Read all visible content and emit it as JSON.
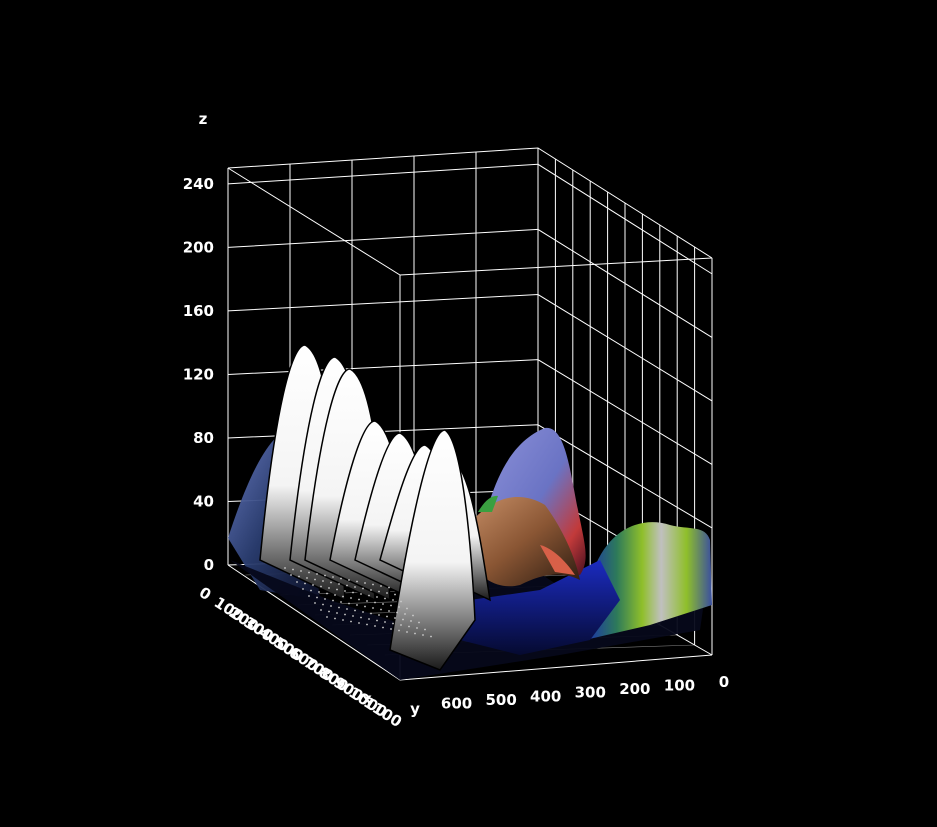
{
  "chart_data": {
    "type": "surface3d",
    "title": "",
    "xlabel": "x",
    "ylabel": "y",
    "zlabel": "z",
    "x_ticks": [
      "0",
      "100",
      "200",
      "300",
      "400",
      "500",
      "600",
      "700",
      "800",
      "900",
      "1000",
      "1100"
    ],
    "y_ticks": [
      "600",
      "500",
      "400",
      "300",
      "200",
      "100",
      "0"
    ],
    "z_ticks": [
      "0",
      "40",
      "80",
      "120",
      "160",
      "200",
      "240"
    ],
    "xlim": [
      0,
      1150
    ],
    "ylim": [
      0,
      700
    ],
    "zlim": [
      0,
      250
    ],
    "grid": true,
    "background": "#000000",
    "grid_color": "#ffffff",
    "surface_colors": [
      "#ffffff",
      "#0a1ea8",
      "#6c7fc8",
      "#c23a3a",
      "#8fbf2a",
      "#b07850",
      "#2a3d70"
    ],
    "ridges": [
      {
        "x": 150,
        "y": 560,
        "z": 145
      },
      {
        "x": 260,
        "y": 555,
        "z": 140
      },
      {
        "x": 380,
        "y": 550,
        "z": 130
      },
      {
        "x": 520,
        "y": 545,
        "z": 118
      },
      {
        "x": 680,
        "y": 540,
        "z": 110
      },
      {
        "x": 850,
        "y": 535,
        "z": 100
      },
      {
        "x": 1050,
        "y": 530,
        "z": 90
      },
      {
        "x": 1100,
        "y": 310,
        "z": 95
      },
      {
        "x": 1100,
        "y": 110,
        "z": 45
      }
    ]
  }
}
